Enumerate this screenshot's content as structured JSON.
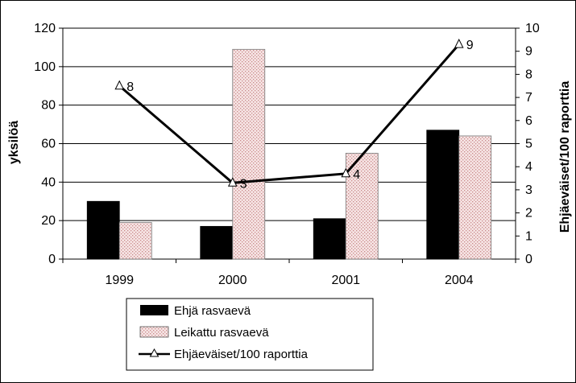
{
  "chart_data": {
    "type": "bar",
    "categories": [
      "1999",
      "2000",
      "2001",
      "2004"
    ],
    "series": [
      {
        "name": "Ehjä rasvaevä",
        "type": "bar",
        "axis": "left",
        "values": [
          30,
          17,
          21,
          67
        ],
        "color": "#000000"
      },
      {
        "name": "Leikattu rasvaevä",
        "type": "bar",
        "axis": "left",
        "values": [
          19,
          109,
          55,
          64
        ],
        "color": "#f3dcdc",
        "pattern": "dotted"
      },
      {
        "name": "Ehjäeväiset/100 raporttia",
        "type": "line",
        "axis": "right",
        "values": [
          7.5,
          3.3,
          3.7,
          9.3
        ],
        "point_labels": [
          "8",
          "3",
          "4",
          "9"
        ],
        "color": "#000000",
        "marker": "triangle"
      }
    ],
    "ylabel": "yksilöä",
    "y2label": "Ehjäeväiset/100 raporttia",
    "ylim": [
      0,
      120
    ],
    "yticks": [
      "0",
      "20",
      "40",
      "60",
      "80",
      "100",
      "120"
    ],
    "y2lim": [
      0,
      10
    ],
    "y2ticks": [
      "0",
      "1",
      "2",
      "3",
      "4",
      "5",
      "6",
      "7",
      "8",
      "9",
      "10"
    ],
    "grid": true,
    "legend_position": "bottom"
  }
}
